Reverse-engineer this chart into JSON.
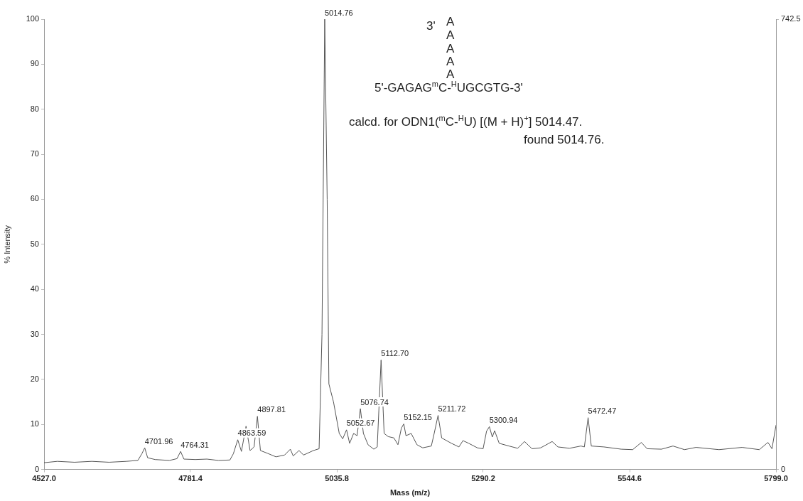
{
  "chart_data": {
    "type": "line",
    "xlabel": "Mass (m/z)",
    "ylabel": "% Intensity",
    "xlim": [
      4527.0,
      5799.0
    ],
    "xticks": [
      {
        "value": 4527.0,
        "label": "4527.0"
      },
      {
        "value": 4781.4,
        "label": "4781.4"
      },
      {
        "value": 5035.8,
        "label": "5035.8"
      },
      {
        "value": 5290.2,
        "label": "5290.2"
      },
      {
        "value": 5544.6,
        "label": "5544.6"
      },
      {
        "value": 5799.0,
        "label": "5799.0"
      }
    ],
    "ylim": [
      0,
      100
    ],
    "yticks": [
      0,
      10,
      20,
      30,
      40,
      50,
      60,
      70,
      80,
      90,
      100
    ],
    "y2lim": [
      0,
      742.5
    ],
    "y2ticks": [
      0,
      742.5
    ],
    "grid": false,
    "legend": false,
    "marker": "none",
    "line_style": "solid",
    "x": [
      4527,
      4550,
      4580,
      4610,
      4640,
      4670,
      4690,
      4697,
      4701.96,
      4707,
      4720,
      4745,
      4758,
      4764.31,
      4770,
      4790,
      4810,
      4830,
      4850,
      4856,
      4863.59,
      4870,
      4878,
      4885,
      4892,
      4897.81,
      4903,
      4915,
      4930,
      4945,
      4955,
      4960,
      4970,
      4978,
      4995,
      5005,
      5010,
      5014.76,
      5019,
      5022,
      5030,
      5040,
      5046,
      5052.67,
      5058,
      5065,
      5071,
      5076.74,
      5082,
      5090,
      5100,
      5106,
      5112.7,
      5118,
      5125,
      5135,
      5142,
      5148,
      5152.15,
      5156,
      5165,
      5175,
      5185,
      5200,
      5205,
      5211.72,
      5218,
      5235,
      5248,
      5255,
      5265,
      5280,
      5290,
      5296,
      5300.94,
      5306,
      5310,
      5318,
      5335,
      5350,
      5362,
      5375,
      5390,
      5410,
      5420,
      5440,
      5460,
      5466,
      5472.47,
      5478,
      5500,
      5530,
      5550,
      5565,
      5575,
      5600,
      5620,
      5640,
      5660,
      5700,
      5740,
      5770,
      5785,
      5792,
      5799
    ],
    "series": [
      {
        "color": "#555555",
        "values": [
          1.5,
          1.8,
          1.6,
          1.8,
          1.6,
          1.8,
          2.0,
          3.5,
          4.8,
          2.6,
          2.2,
          2.0,
          2.4,
          4.0,
          2.3,
          2.2,
          2.3,
          2.0,
          2.1,
          3.5,
          6.6,
          4.0,
          9.6,
          4.2,
          5.0,
          11.8,
          4.2,
          3.6,
          2.8,
          3.2,
          4.5,
          3.0,
          4.2,
          3.2,
          4.2,
          4.6,
          30,
          100,
          60,
          19,
          15,
          8,
          6.8,
          8.8,
          5.8,
          8.0,
          7.5,
          13.5,
          8,
          5.5,
          4.5,
          5,
          24.3,
          8,
          7.3,
          7,
          5.5,
          9.2,
          10.1,
          7.5,
          8,
          5.5,
          4.8,
          5.2,
          8,
          12.0,
          7,
          5.8,
          5.0,
          6.4,
          5.8,
          4.8,
          4.6,
          8.5,
          9.5,
          7.2,
          8.6,
          5.8,
          5.2,
          4.7,
          6.2,
          4.6,
          4.8,
          6.2,
          5.0,
          4.7,
          5.2,
          5.0,
          11.5,
          5.2,
          5.0,
          4.5,
          4.4,
          6.0,
          4.6,
          4.5,
          5.2,
          4.4,
          4.9,
          4.4,
          4.9,
          4.4,
          6.0,
          4.6,
          9.8
        ]
      }
    ],
    "annotations": [
      {
        "text": "5014.76",
        "x": 5014.76,
        "y": 100
      },
      {
        "text": "4701.96",
        "x": 4701.96,
        "y": 4.8
      },
      {
        "text": "4764.31",
        "x": 4764.31,
        "y": 4.0
      },
      {
        "text": "4863.59",
        "x": 4863.59,
        "y": 6.6
      },
      {
        "text": "4897.81",
        "x": 4897.81,
        "y": 11.8
      },
      {
        "text": "5052.67",
        "x": 5052.67,
        "y": 8.8
      },
      {
        "text": "5076.74",
        "x": 5076.74,
        "y": 13.5
      },
      {
        "text": "5112.70",
        "x": 5112.7,
        "y": 24.3
      },
      {
        "text": "5152.15",
        "x": 5152.15,
        "y": 10.1
      },
      {
        "text": "5211.72",
        "x": 5211.72,
        "y": 12.0
      },
      {
        "text": "5300.94",
        "x": 5300.94,
        "y": 9.5
      },
      {
        "text": "5472.47",
        "x": 5472.47,
        "y": 11.5
      },
      "3'",
      "A",
      "A",
      "A",
      "A",
      "A",
      "5'-GAGAG$^{m}$C-$^{H}$UGCGTG-3'",
      "calcd. for ODN1($^{m}$C-$^{H}$U)  [(M + H)$^{+}$] 5014.47.",
      "found 5014.76."
    ]
  }
}
